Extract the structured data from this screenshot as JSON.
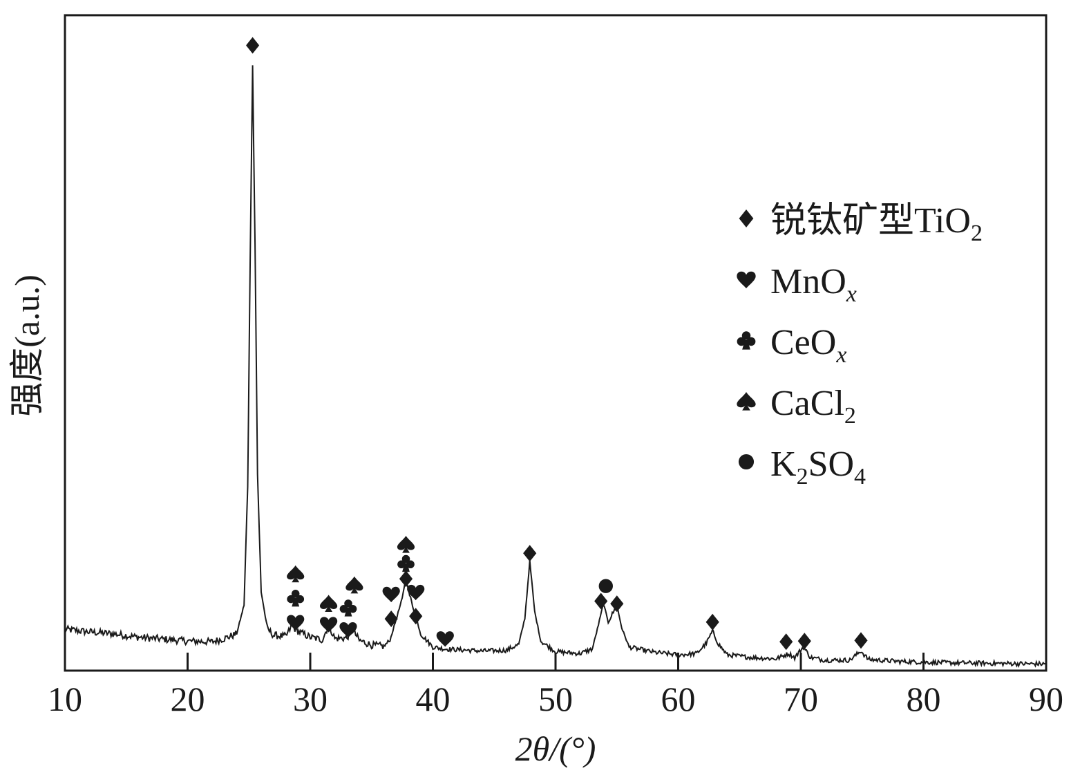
{
  "chart_data": {
    "type": "line",
    "xlabel": "2θ/(°)",
    "ylabel": "强度(a.u.)",
    "xlim": [
      10,
      90
    ],
    "xticks": [
      10,
      20,
      30,
      40,
      50,
      60,
      70,
      80,
      90
    ],
    "ylim": [
      0,
      100
    ],
    "y_ticks_shown": false,
    "grid": false,
    "legend": {
      "placement": "top-right",
      "entries": [
        {
          "symbol": "diamond",
          "label_main": "锐钛矿型TiO",
          "label_sub": "2",
          "label_after": "",
          "sub_italic": false
        },
        {
          "symbol": "heart",
          "label_main": "MnO",
          "label_sub": "x",
          "label_after": "",
          "sub_italic": true
        },
        {
          "symbol": "club",
          "label_main": "CeO",
          "label_sub": "x",
          "label_after": "",
          "sub_italic": true
        },
        {
          "symbol": "spade",
          "label_main": "CaCl",
          "label_sub": "2",
          "label_after": "",
          "sub_italic": false
        },
        {
          "symbol": "circle",
          "label_main": "K",
          "label_sub": "2",
          "label_after": "SO",
          "label_sub2": "4",
          "sub_italic": false
        }
      ]
    },
    "series": [
      {
        "points": [
          [
            10,
            6.3
          ],
          [
            12,
            5.9
          ],
          [
            14,
            5.6
          ],
          [
            16,
            5.1
          ],
          [
            18,
            4.8
          ],
          [
            20,
            4.5
          ],
          [
            22,
            4.4
          ],
          [
            23,
            4.9
          ],
          [
            24,
            5.6
          ],
          [
            24.6,
            10
          ],
          [
            24.9,
            28
          ],
          [
            25.1,
            62
          ],
          [
            25.3,
            92.5
          ],
          [
            25.5,
            65
          ],
          [
            25.7,
            30
          ],
          [
            26,
            12
          ],
          [
            26.5,
            6.4
          ],
          [
            27,
            5.4
          ],
          [
            28,
            5.2
          ],
          [
            28.5,
            6.8
          ],
          [
            29,
            6.0
          ],
          [
            30,
            5.1
          ],
          [
            31,
            4.7
          ],
          [
            31.5,
            7.0
          ],
          [
            32,
            4.9
          ],
          [
            33,
            5.0
          ],
          [
            33.4,
            6.4
          ],
          [
            34,
            4.6
          ],
          [
            35,
            3.9
          ],
          [
            36,
            3.7
          ],
          [
            36.5,
            4.6
          ],
          [
            37,
            7.8
          ],
          [
            37.5,
            11
          ],
          [
            37.8,
            14.3
          ],
          [
            38.1,
            11.5
          ],
          [
            38.5,
            9.0
          ],
          [
            39,
            5.6
          ],
          [
            40,
            3.6
          ],
          [
            41,
            3.3
          ],
          [
            42,
            3.2
          ],
          [
            44,
            3.0
          ],
          [
            46,
            3.1
          ],
          [
            47,
            4.0
          ],
          [
            47.5,
            8.0
          ],
          [
            47.9,
            16.7
          ],
          [
            48.3,
            9.0
          ],
          [
            48.8,
            4.5
          ],
          [
            50,
            2.9
          ],
          [
            52,
            2.6
          ],
          [
            53,
            3.3
          ],
          [
            53.5,
            7.0
          ],
          [
            53.9,
            10.2
          ],
          [
            54.3,
            7.5
          ],
          [
            54.8,
            9.2
          ],
          [
            55,
            10.0
          ],
          [
            55.4,
            6.5
          ],
          [
            56,
            3.6
          ],
          [
            58,
            2.8
          ],
          [
            60,
            2.4
          ],
          [
            61.5,
            2.6
          ],
          [
            62.3,
            4.2
          ],
          [
            62.8,
            6.0
          ],
          [
            63.3,
            4.0
          ],
          [
            64,
            2.4
          ],
          [
            66,
            2.0
          ],
          [
            68,
            1.8
          ],
          [
            69,
            2.6
          ],
          [
            69.5,
            2.0
          ],
          [
            70.2,
            3.6
          ],
          [
            70.8,
            2.0
          ],
          [
            72,
            1.6
          ],
          [
            74,
            1.6
          ],
          [
            74.9,
            3.0
          ],
          [
            75.5,
            1.7
          ],
          [
            78,
            1.4
          ],
          [
            82,
            1.2
          ],
          [
            86,
            1.1
          ],
          [
            90,
            1.0
          ]
        ]
      }
    ],
    "annotations": [
      {
        "x": 25.3,
        "y": 95.4,
        "symbol": "diamond"
      },
      {
        "x": 28.8,
        "y": 14.8,
        "symbol": "spade"
      },
      {
        "x": 28.8,
        "y": 11.1,
        "symbol": "club"
      },
      {
        "x": 28.8,
        "y": 7.4,
        "symbol": "heart"
      },
      {
        "x": 31.5,
        "y": 10.3,
        "symbol": "spade"
      },
      {
        "x": 31.5,
        "y": 7.1,
        "symbol": "heart"
      },
      {
        "x": 33.1,
        "y": 9.6,
        "symbol": "club"
      },
      {
        "x": 33.1,
        "y": 6.3,
        "symbol": "heart"
      },
      {
        "x": 33.6,
        "y": 13.1,
        "symbol": "spade"
      },
      {
        "x": 37.8,
        "y": 19.3,
        "symbol": "spade"
      },
      {
        "x": 37.8,
        "y": 16.4,
        "symbol": "club"
      },
      {
        "x": 37.8,
        "y": 14.0,
        "symbol": "diamond"
      },
      {
        "x": 36.6,
        "y": 11.7,
        "symbol": "heart"
      },
      {
        "x": 38.6,
        "y": 12.0,
        "symbol": "heart"
      },
      {
        "x": 36.6,
        "y": 7.9,
        "symbol": "diamond"
      },
      {
        "x": 38.6,
        "y": 8.3,
        "symbol": "diamond"
      },
      {
        "x": 41.0,
        "y": 4.9,
        "symbol": "heart"
      },
      {
        "x": 47.9,
        "y": 17.9,
        "symbol": "diamond"
      },
      {
        "x": 54.1,
        "y": 12.9,
        "symbol": "circle"
      },
      {
        "x": 53.7,
        "y": 10.6,
        "symbol": "diamond"
      },
      {
        "x": 55.0,
        "y": 10.2,
        "symbol": "diamond"
      },
      {
        "x": 62.8,
        "y": 7.4,
        "symbol": "diamond"
      },
      {
        "x": 68.8,
        "y": 4.4,
        "symbol": "diamond"
      },
      {
        "x": 70.3,
        "y": 4.5,
        "symbol": "diamond"
      },
      {
        "x": 74.9,
        "y": 4.6,
        "symbol": "diamond"
      }
    ]
  }
}
